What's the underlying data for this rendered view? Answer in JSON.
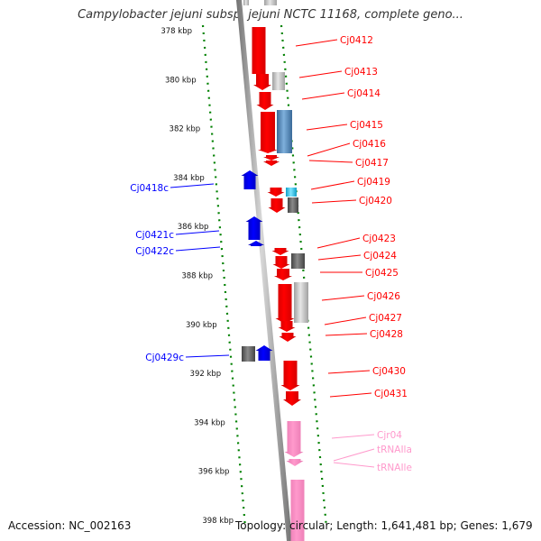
{
  "title": "Campylobacter jejuni subsp. jejuni NCTC 11168, complete geno...",
  "footer": {
    "accession": "Accession: NC_002163",
    "summary": "Topology: circular; Length: 1,641,481 bp; Genes: 1,679"
  },
  "colors": {
    "forward_gene": "#ff0000",
    "reverse_gene": "#0000ff",
    "rna_gene": "#ff99cc",
    "scale_dots": "#008000",
    "backbone": "#888888",
    "gray_block": "#666666",
    "light_gray_block": "#c8c8c8",
    "steel_blue_block": "#4f86b8",
    "cyan_block": "#22c8e8"
  },
  "ruler": {
    "unit": "kbp",
    "ticks": [
      {
        "label": "378 kbp",
        "kb": 378
      },
      {
        "label": "380 kbp",
        "kb": 380
      },
      {
        "label": "382 kbp",
        "kb": 382
      },
      {
        "label": "384 kbp",
        "kb": 384
      },
      {
        "label": "386 kbp",
        "kb": 386
      },
      {
        "label": "388 kbp",
        "kb": 388
      },
      {
        "label": "390 kbp",
        "kb": 390
      },
      {
        "label": "392 kbp",
        "kb": 392
      },
      {
        "label": "394 kbp",
        "kb": 394
      },
      {
        "label": "396 kbp",
        "kb": 396
      },
      {
        "label": "398 kbp",
        "kb": 398
      }
    ]
  },
  "labels_right": [
    {
      "text": "Cj0412",
      "type": "forward"
    },
    {
      "text": "Cj0413",
      "type": "forward"
    },
    {
      "text": "Cj0414",
      "type": "forward"
    },
    {
      "text": "Cj0415",
      "type": "forward"
    },
    {
      "text": "Cj0416",
      "type": "forward"
    },
    {
      "text": "Cj0417",
      "type": "forward"
    },
    {
      "text": "Cj0419",
      "type": "forward"
    },
    {
      "text": "Cj0420",
      "type": "forward"
    },
    {
      "text": "Cj0423",
      "type": "forward"
    },
    {
      "text": "Cj0424",
      "type": "forward"
    },
    {
      "text": "Cj0425",
      "type": "forward"
    },
    {
      "text": "Cj0426",
      "type": "forward"
    },
    {
      "text": "Cj0427",
      "type": "forward"
    },
    {
      "text": "Cj0428",
      "type": "forward"
    },
    {
      "text": "Cj0430",
      "type": "forward"
    },
    {
      "text": "Cj0431",
      "type": "forward"
    },
    {
      "text": "Cjr04",
      "type": "rna"
    },
    {
      "text": "tRNAIla",
      "type": "rna"
    },
    {
      "text": "tRNAIle",
      "type": "rna"
    }
  ],
  "labels_left": [
    {
      "text": "Cj0418c",
      "type": "reverse"
    },
    {
      "text": "Cj0421c",
      "type": "reverse"
    },
    {
      "text": "Cj0422c",
      "type": "reverse"
    },
    {
      "text": "Cj0429c",
      "type": "reverse"
    }
  ]
}
